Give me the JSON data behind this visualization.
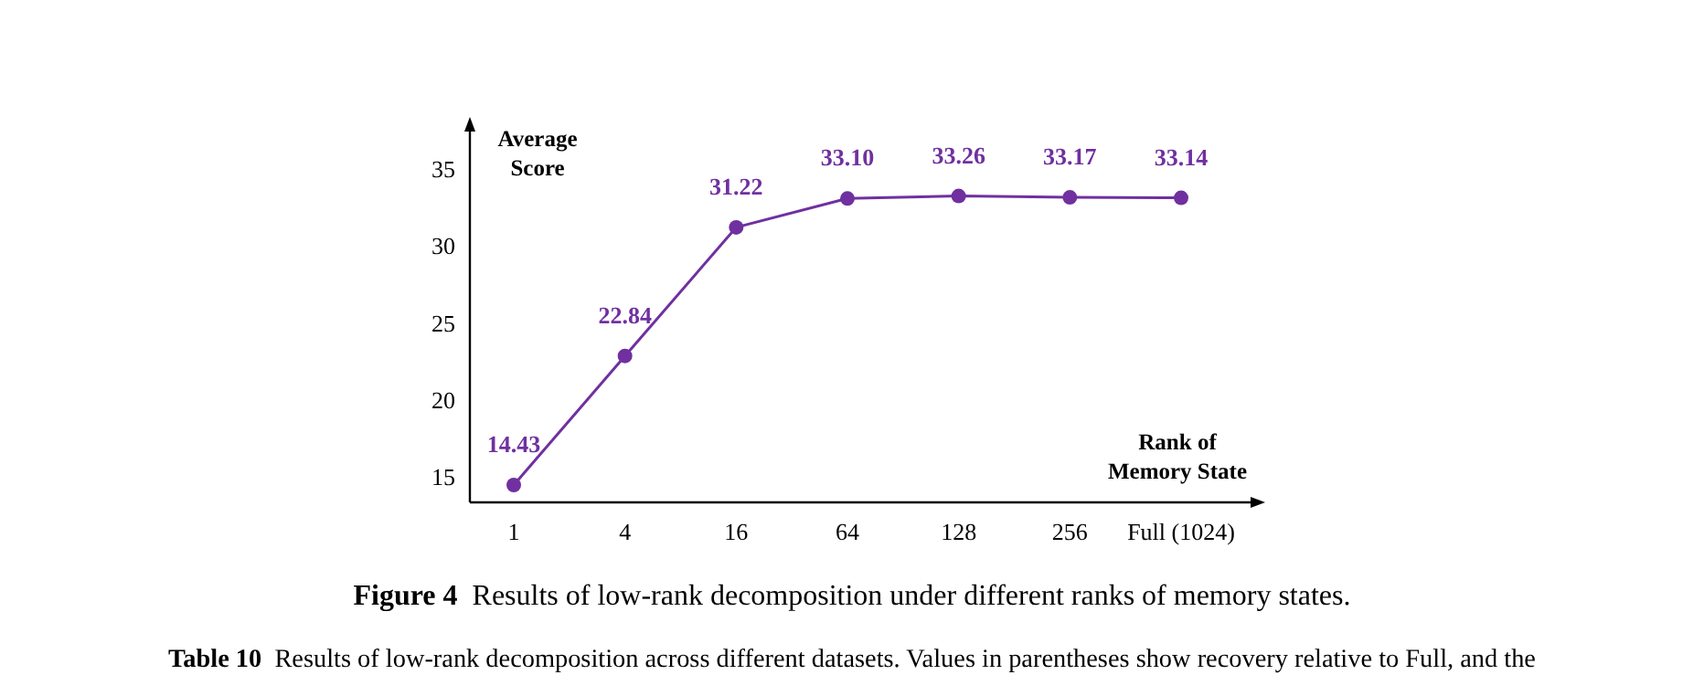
{
  "chart_data": {
    "type": "line",
    "xlabel": "Rank of Memory State",
    "ylabel": "Average Score",
    "categories": [
      "1",
      "4",
      "16",
      "64",
      "128",
      "256",
      "Full (1024)"
    ],
    "series": [
      {
        "color": "#7030a0",
        "values": [
          14.43,
          22.84,
          31.22,
          33.1,
          33.26,
          33.17,
          33.14
        ]
      }
    ],
    "value_labels": [
      "14.43",
      "22.84",
      "31.22",
      "33.10",
      "33.26",
      "33.17",
      "33.14"
    ],
    "ylim": [
      13.3,
      37.7
    ],
    "yticks": [
      15,
      20,
      25,
      30,
      35
    ],
    "grid": false,
    "marker": "circle",
    "line_style": "solid",
    "annotations": [
      "Figure 4  Results of low-rank decomposition under different ranks of memory states.",
      "Table 10  Results of low-rank decomposition across different datasets. Values in parentheses show recovery relative to Full, and the"
    ]
  }
}
